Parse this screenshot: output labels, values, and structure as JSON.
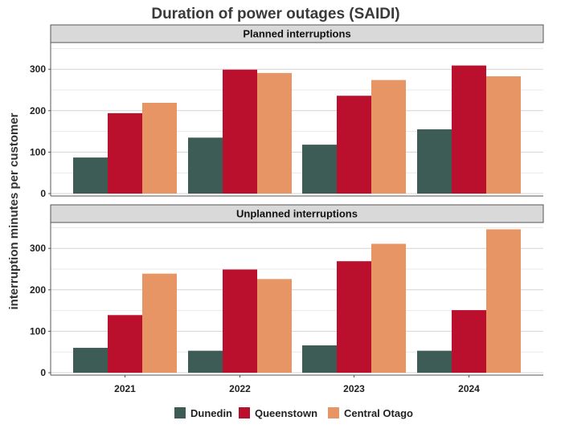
{
  "chart_data": {
    "type": "bar",
    "title": "Duration of power outages (SAIDI)",
    "ylabel": "interruption minutes per customer",
    "xlabel": "",
    "categories": [
      "2021",
      "2022",
      "2023",
      "2024"
    ],
    "ylim": [
      0,
      360
    ],
    "yticks": [
      0,
      100,
      200,
      300
    ],
    "grid": true,
    "legend_position": "bottom",
    "series_colors": {
      "Dunedin": "#3d5c55",
      "Queenstown": "#bb0f2e",
      "Central Otago": "#e89566"
    },
    "panels": [
      {
        "title": "Planned interruptions",
        "series": [
          {
            "name": "Dunedin",
            "values": [
              87,
              135,
              118,
              155
            ]
          },
          {
            "name": "Queenstown",
            "values": [
              194,
              299,
              236,
              309
            ]
          },
          {
            "name": "Central Otago",
            "values": [
              219,
              291,
              274,
              283
            ]
          }
        ]
      },
      {
        "title": "Unplanned interruptions",
        "series": [
          {
            "name": "Dunedin",
            "values": [
              60,
              53,
              66,
              53
            ]
          },
          {
            "name": "Queenstown",
            "values": [
              139,
              249,
              269,
              151
            ]
          },
          {
            "name": "Central Otago",
            "values": [
              239,
              226,
              311,
              346
            ]
          }
        ]
      }
    ],
    "legend": [
      "Dunedin",
      "Queenstown",
      "Central Otago"
    ]
  }
}
